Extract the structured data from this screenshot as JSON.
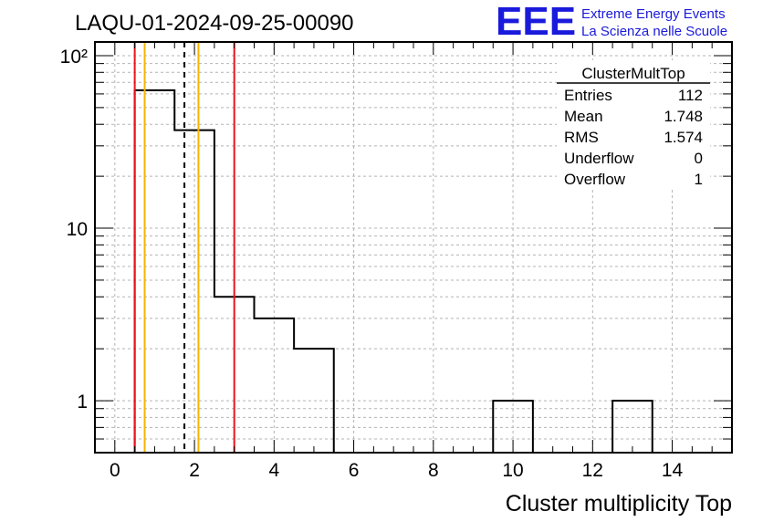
{
  "header": {
    "run_title": "LAQU-01-2024-09-25-00090",
    "logo_text": "EEE",
    "logo_line1": "Extreme Energy Events",
    "logo_line2": "La Scienza nelle Scuole"
  },
  "stats_box": {
    "title": "ClusterMultTop",
    "rows": [
      {
        "label": "Entries",
        "value": "112"
      },
      {
        "label": "Mean",
        "value": "1.748"
      },
      {
        "label": "RMS",
        "value": "1.574"
      },
      {
        "label": "Underflow",
        "value": "0"
      },
      {
        "label": "Overflow",
        "value": "1"
      }
    ]
  },
  "colors": {
    "histogram": "#000000",
    "red_marker": "#e8141c",
    "orange_marker": "#f5b400",
    "mean_marker": "#000000",
    "grid": "#b4b4b4",
    "logo": "#1a1adc"
  },
  "chart_data": {
    "type": "bar",
    "title": "LAQU-01-2024-09-25-00090",
    "xlabel": "Cluster multiplicity Top",
    "ylabel": "",
    "yscale": "log",
    "xlim": [
      -0.5,
      15.5
    ],
    "ylim": [
      0.5,
      120
    ],
    "x_ticks": [
      0,
      2,
      4,
      6,
      8,
      10,
      12,
      14
    ],
    "x_tick_labels": [
      "0",
      "2",
      "4",
      "6",
      "8",
      "10",
      "12",
      "14"
    ],
    "y_ticks": [
      1,
      10,
      100
    ],
    "y_tick_labels": [
      "1",
      "10",
      "10²"
    ],
    "bins": [
      {
        "low": 0.5,
        "high": 1.5,
        "value": 63
      },
      {
        "low": 1.5,
        "high": 2.5,
        "value": 37
      },
      {
        "low": 2.5,
        "high": 3.5,
        "value": 4
      },
      {
        "low": 3.5,
        "high": 4.5,
        "value": 3
      },
      {
        "low": 4.5,
        "high": 5.5,
        "value": 2
      },
      {
        "low": 9.5,
        "high": 10.5,
        "value": 1
      },
      {
        "low": 12.5,
        "high": 13.5,
        "value": 1
      }
    ],
    "markers": [
      {
        "x": 0.5,
        "color": "red",
        "style": "solid"
      },
      {
        "x": 3.0,
        "color": "red",
        "style": "solid"
      },
      {
        "x": 0.75,
        "color": "orange",
        "style": "solid"
      },
      {
        "x": 2.1,
        "color": "orange",
        "style": "solid"
      },
      {
        "x": 1.748,
        "color": "black",
        "style": "dashed"
      }
    ],
    "grid": true
  }
}
